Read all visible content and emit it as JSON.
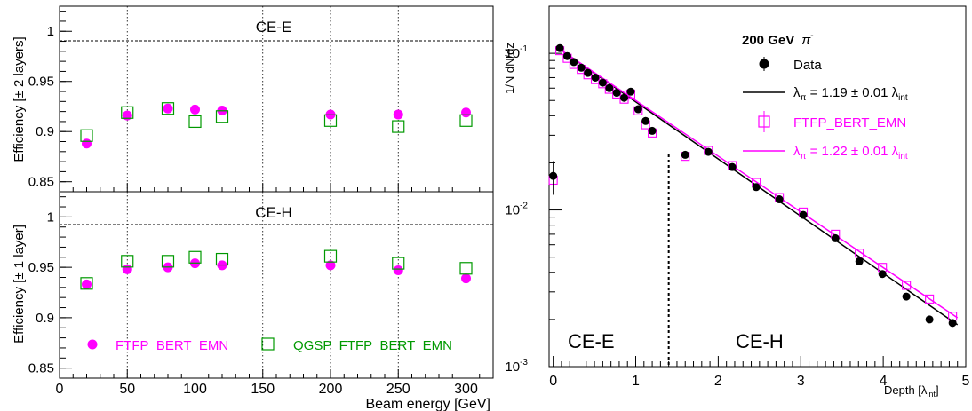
{
  "colors": {
    "ftfp": "#ff00ff",
    "qgsp": "#009900",
    "data": "#000000",
    "fit_data": "#000000",
    "fit_ftfp": "#ff00ff"
  },
  "chart_data": [
    {
      "type": "scatter",
      "panel": "top-left",
      "ylabel": "Efficiency [± 2 layers]",
      "annotation": "CE-E",
      "xlim": [
        0,
        320
      ],
      "ylim": [
        0.84,
        1.025
      ],
      "xticks": [
        0,
        50,
        100,
        150,
        200,
        250,
        300
      ],
      "yticks": [
        0.85,
        0.9,
        0.95,
        1
      ],
      "ytick_labels": [
        "0.85",
        "0.9",
        "0.95",
        "1"
      ],
      "reference_line": 1,
      "grid": "dotted vertical lines at 50,100,150,200,250,300",
      "series": [
        {
          "name": "FTFP_BERT_EMN",
          "marker": "filled-circle",
          "color": "#ff00ff",
          "x": [
            20,
            50,
            80,
            100,
            120,
            200,
            250,
            300
          ],
          "y": [
            0.888,
            0.916,
            0.923,
            0.922,
            0.921,
            0.917,
            0.917,
            0.919
          ]
        },
        {
          "name": "QGSP_FTFP_BERT_EMN",
          "marker": "open-square",
          "color": "#009900",
          "x": [
            20,
            50,
            80,
            100,
            120,
            200,
            250,
            300
          ],
          "y": [
            0.896,
            0.919,
            0.923,
            0.91,
            0.915,
            0.911,
            0.905,
            0.911
          ]
        }
      ]
    },
    {
      "type": "scatter",
      "panel": "bottom-left",
      "ylabel": "Efficiency [± 1 layer]",
      "xlabel": "Beam energy [GeV]",
      "annotation": "CE-H",
      "xlim": [
        0,
        320
      ],
      "ylim": [
        0.84,
        1.025
      ],
      "xticks": [
        0,
        50,
        100,
        150,
        200,
        250,
        300
      ],
      "xtick_labels": [
        "0",
        "50",
        "100",
        "150",
        "200",
        "250",
        "300"
      ],
      "yticks": [
        0.85,
        0.9,
        0.95,
        1
      ],
      "ytick_labels": [
        "0.85",
        "0.9",
        "0.95",
        "1"
      ],
      "reference_line": 1,
      "legend": {
        "placement": "bottom",
        "entries": [
          "FTFP_BERT_EMN",
          "QGSP_FTFP_BERT_EMN"
        ]
      },
      "series": [
        {
          "name": "FTFP_BERT_EMN",
          "marker": "filled-circle",
          "color": "#ff00ff",
          "x": [
            20,
            50,
            80,
            100,
            120,
            200,
            250,
            300
          ],
          "y": [
            0.933,
            0.948,
            0.95,
            0.954,
            0.952,
            0.952,
            0.947,
            0.939
          ]
        },
        {
          "name": "QGSP_FTFP_BERT_EMN",
          "marker": "open-square",
          "color": "#009900",
          "x": [
            20,
            50,
            80,
            100,
            120,
            200,
            250,
            300
          ],
          "y": [
            0.934,
            0.956,
            0.956,
            0.96,
            0.958,
            0.961,
            0.954,
            0.949
          ]
        }
      ]
    },
    {
      "type": "scatter",
      "panel": "right",
      "ylabel": "1/N dN/dz",
      "xlabel": "Depth [λint]",
      "xlim": [
        -0.05,
        5
      ],
      "ylim": [
        0.001,
        0.2
      ],
      "yscale": "log",
      "xticks": [
        0,
        1,
        2,
        3,
        4,
        5
      ],
      "xtick_labels": [
        "0",
        "1",
        "2",
        "3",
        "4",
        "5"
      ],
      "yticks": [
        0.001,
        0.01,
        0.1
      ],
      "ytick_labels": [
        {
          "base": "10",
          "exp": "-3"
        },
        {
          "base": "10",
          "exp": "-2"
        },
        {
          "base": "10",
          "exp": "-1"
        }
      ],
      "divider_x": 1.4,
      "region_labels": [
        "CE-E",
        "CE-H"
      ],
      "legend_title": {
        "text": "200 GeV",
        "symbol": "π",
        "sup": "-"
      },
      "legend": {
        "placement": "top-right"
      },
      "series": [
        {
          "name": "Data",
          "marker": "filled-circle",
          "color": "#000000",
          "x": [
            0.0,
            0.08,
            0.17,
            0.25,
            0.34,
            0.42,
            0.51,
            0.6,
            0.68,
            0.77,
            0.86,
            0.94,
            1.03,
            1.12,
            1.2,
            1.6,
            1.88,
            2.17,
            2.46,
            2.74,
            3.03,
            3.42,
            3.71,
            3.99,
            4.28,
            4.56,
            4.84
          ],
          "y": [
            0.0165,
            0.108,
            0.096,
            0.088,
            0.081,
            0.075,
            0.07,
            0.065,
            0.06,
            0.056,
            0.052,
            0.057,
            0.044,
            0.037,
            0.032,
            0.0225,
            0.0235,
            0.0188,
            0.014,
            0.0117,
            0.0093,
            0.0066,
            0.0047,
            0.0039,
            0.0028,
            0.002,
            0.0019
          ],
          "yerr_first": 0.004
        },
        {
          "name": "FTFP_BERT_EMN",
          "marker": "open-square",
          "color": "#ff00ff",
          "x": [
            0.0,
            0.08,
            0.17,
            0.25,
            0.34,
            0.42,
            0.51,
            0.6,
            0.68,
            0.77,
            0.86,
            0.94,
            1.03,
            1.12,
            1.2,
            1.6,
            1.88,
            2.17,
            2.46,
            2.74,
            3.03,
            3.42,
            3.71,
            3.99,
            4.28,
            4.56,
            4.84
          ],
          "y": [
            0.0155,
            0.104,
            0.093,
            0.085,
            0.079,
            0.073,
            0.068,
            0.064,
            0.059,
            0.055,
            0.051,
            0.055,
            0.043,
            0.035,
            0.031,
            0.022,
            0.024,
            0.0192,
            0.015,
            0.012,
            0.0097,
            0.007,
            0.0053,
            0.0043,
            0.0033,
            0.0027,
            0.0021
          ]
        }
      ],
      "fits": [
        {
          "legend": {
            "text": "λ",
            "sub": "π",
            "mid": " = 1.19 ± 0.01 λ",
            "sub2": "int"
          },
          "color": "#000000",
          "points": [
            [
              0.06,
              0.108
            ],
            [
              4.9,
              0.00185
            ]
          ]
        },
        {
          "legend": {
            "text": "λ",
            "sub": "π",
            "mid": " = 1.22 ± 0.01 λ",
            "sub2": "int"
          },
          "color": "#ff00ff",
          "points": [
            [
              0.06,
              0.108
            ],
            [
              4.9,
              0.00205
            ]
          ]
        }
      ]
    }
  ],
  "panel_text": {
    "top_annotation": "CE-E",
    "bottom_annotation": "CE-H",
    "top_ylabel": "Efficiency [± 2 layers]",
    "bottom_ylabel": "Efficiency [± 1 layer]",
    "left_xlabel": "Beam energy [GeV]",
    "legend_ftfp": "FTFP_BERT_EMN",
    "legend_qgsp": "QGSP_FTFP_BERT_EMN",
    "right_ylabel": "1/N dN/dz",
    "right_xlabel_main": "Depth [λ",
    "right_xlabel_sub": "int",
    "right_xlabel_end": "]",
    "legend_title_main": "200 GeV",
    "legend_title_symbol": "π",
    "legend_title_sup": "-",
    "legend_data": "Data",
    "legend_fit1_a": "λ",
    "legend_fit1_sub": "π",
    "legend_fit1_b": " = 1.19 ± 0.01 λ",
    "legend_fit1_sub2": "int",
    "legend_ftfp_right": "FTFP_BERT_EMN",
    "legend_fit2_a": "λ",
    "legend_fit2_sub": "π",
    "legend_fit2_b": " = 1.22 ± 0.01 λ",
    "legend_fit2_sub2": "int",
    "region_ce_e": "CE-E",
    "region_ce_h": "CE-H",
    "base10": "10",
    "exp_m3": "-3",
    "exp_m2": "-2",
    "exp_m1": "-1"
  }
}
